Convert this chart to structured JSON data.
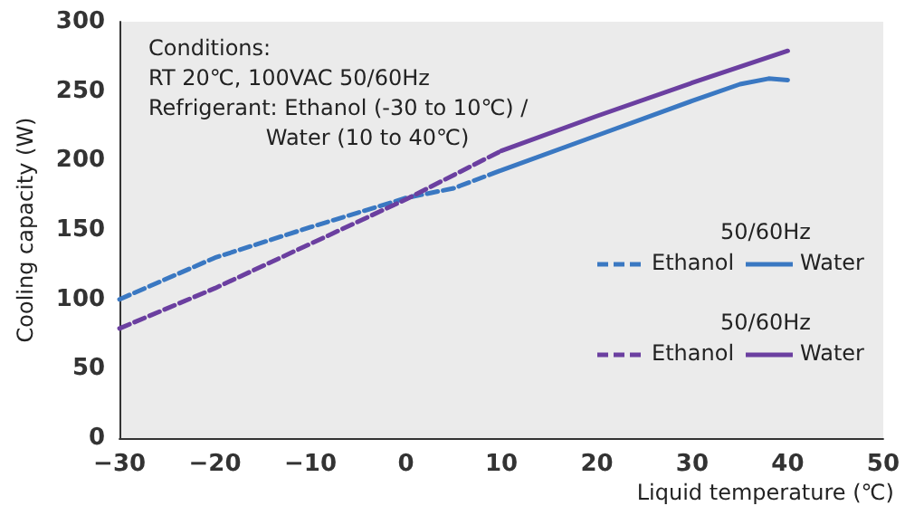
{
  "chart_data": {
    "type": "line",
    "xlabel": "Liquid temperature (℃)",
    "ylabel": "Cooling capacity (W)",
    "annotations": [
      "Conditions:\nRT 20℃, 100VAC 50/60Hz\nRefrigerant: Ethanol (-30 to 10℃) /\n                 Water (10 to 40℃)",
      "50/60Hz",
      "50/60Hz"
    ],
    "series": [
      {
        "name": "Ethanol",
        "color": "#3a78c2",
        "line_style": "dashed",
        "x": [
          -30,
          -20,
          -10,
          0,
          5,
          10
        ],
        "values": [
          100,
          130,
          152,
          173,
          180,
          193
        ]
      },
      {
        "name": "Water",
        "color": "#3a78c2",
        "line_style": "solid",
        "x": [
          10,
          20,
          30,
          35,
          38,
          40
        ],
        "values": [
          193,
          218,
          243,
          255,
          259,
          258
        ]
      },
      {
        "name": "Ethanol",
        "color": "#6b3fa0",
        "line_style": "dashed",
        "x": [
          -30,
          -20,
          -10,
          0,
          10
        ],
        "values": [
          79,
          108,
          140,
          172,
          207
        ]
      },
      {
        "name": "Water",
        "color": "#6b3fa0",
        "line_style": "solid",
        "x": [
          10,
          20,
          30,
          40
        ],
        "values": [
          207,
          232,
          256,
          279
        ]
      }
    ],
    "xlim": [
      -30,
      50
    ],
    "xticks": [
      -30,
      -20,
      -10,
      0,
      10,
      20,
      30,
      40,
      50
    ],
    "ylim": [
      0,
      300
    ],
    "yticks": [
      0,
      50,
      100,
      150,
      200,
      250,
      300
    ],
    "grid": false,
    "legend": "right",
    "marker": "none"
  }
}
